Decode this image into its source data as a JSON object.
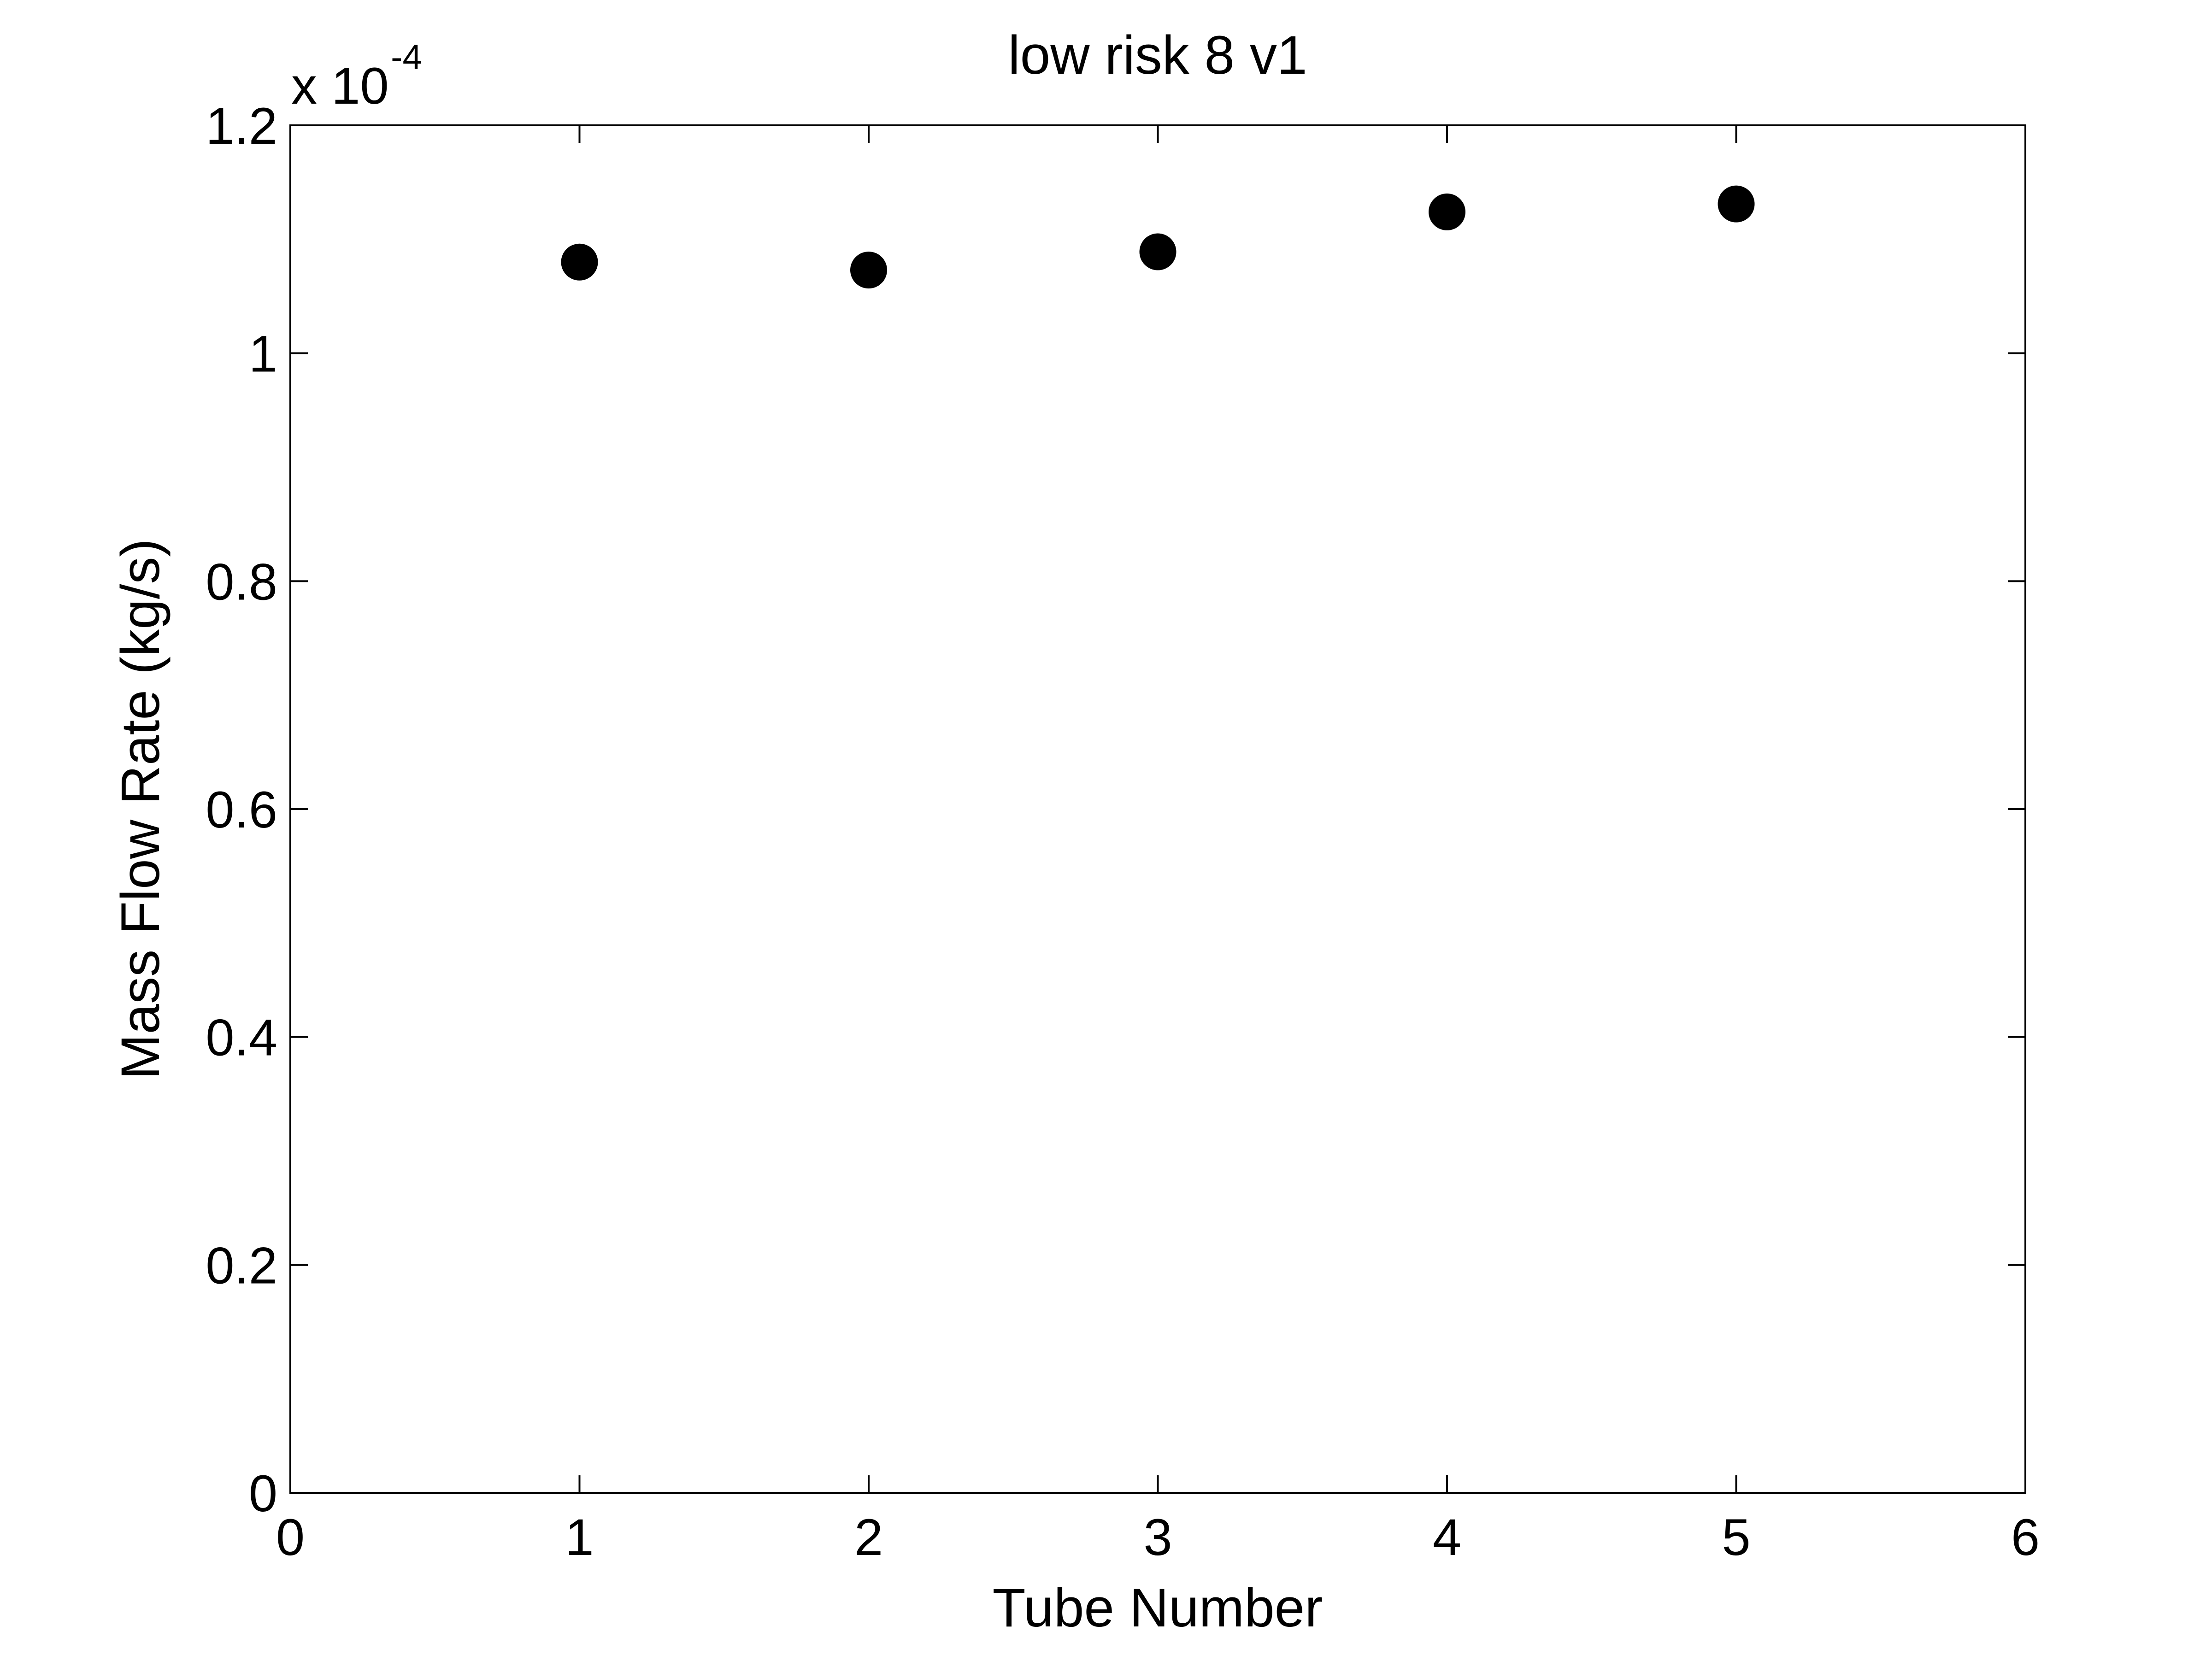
{
  "chart_data": {
    "type": "scatter",
    "title": "low risk 8 v1",
    "xlabel": "Tube Number",
    "ylabel": "Mass Flow Rate (kg/s)",
    "y_exponent_prefix": "x 10",
    "y_exponent_power": "-4",
    "xlim": [
      0,
      6
    ],
    "ylim": [
      0,
      1.2
    ],
    "x_ticks": [
      0,
      1,
      2,
      3,
      4,
      5,
      6
    ],
    "y_ticks": [
      0,
      0.2,
      0.4,
      0.6,
      0.8,
      1,
      1.2
    ],
    "x_tick_labels": [
      "0",
      "1",
      "2",
      "3",
      "4",
      "5",
      "6"
    ],
    "y_tick_labels": [
      "0",
      "0.2",
      "0.4",
      "0.6",
      "0.8",
      "1",
      "1.2"
    ],
    "grid": false,
    "marker_color": "#000000",
    "series": [
      {
        "x": [
          1,
          2,
          3,
          4,
          5
        ],
        "y": [
          1.08,
          1.073,
          1.089,
          1.124,
          1.131
        ]
      }
    ]
  }
}
